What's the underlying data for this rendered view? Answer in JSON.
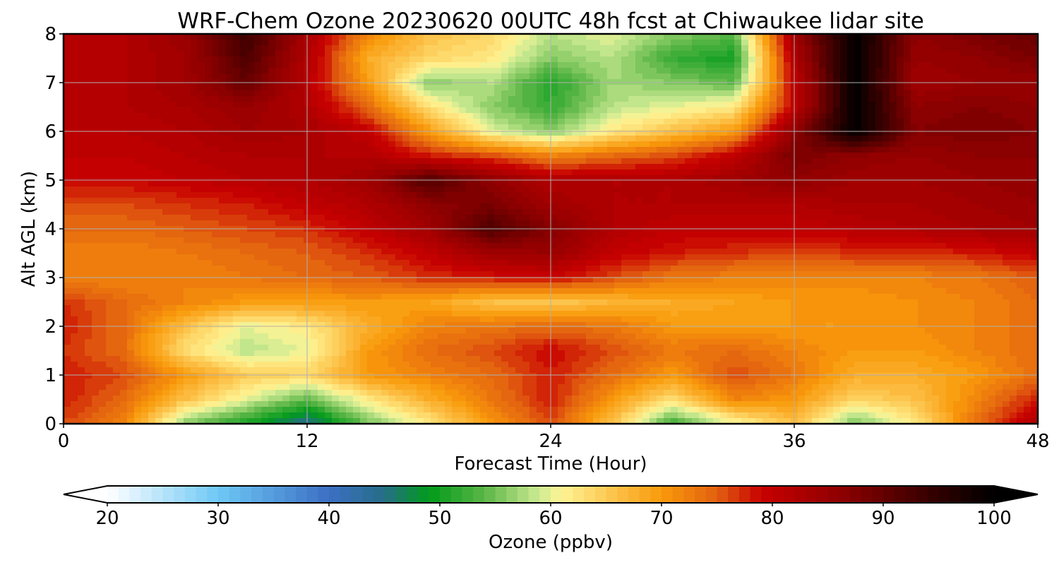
{
  "chart_data": {
    "type": "heatmap",
    "title": "WRF-Chem Ozone  20230620 00UTC 48h fcst at Chiwaukee lidar site",
    "xlabel": "Forecast Time (Hour)",
    "ylabel": "Alt AGL (km)",
    "xlim": [
      0,
      48
    ],
    "ylim": [
      0,
      8
    ],
    "x_ticks": [
      0,
      12,
      24,
      36,
      48
    ],
    "y_ticks": [
      0,
      1,
      2,
      3,
      4,
      5,
      6,
      7,
      8
    ],
    "grid": true,
    "x": [
      0,
      3,
      6,
      9,
      12,
      15,
      18,
      21,
      24,
      27,
      30,
      33,
      36,
      39,
      42,
      45,
      48
    ],
    "y": [
      0,
      0.5,
      1,
      1.5,
      2,
      2.5,
      3,
      3.5,
      4,
      4.5,
      5,
      5.5,
      6,
      6.5,
      7,
      7.5,
      8
    ],
    "z_units": "ppbv",
    "z": [
      [
        76,
        72,
        56,
        50,
        44,
        55,
        62,
        70,
        76,
        66,
        52,
        60,
        66,
        55,
        62,
        74,
        82
      ],
      [
        78,
        74,
        66,
        60,
        54,
        62,
        68,
        73,
        78,
        70,
        63,
        72,
        70,
        64,
        66,
        72,
        78
      ],
      [
        78,
        76,
        70,
        65,
        64,
        70,
        72,
        74,
        78,
        74,
        70,
        76,
        73,
        68,
        68,
        70,
        74
      ],
      [
        77,
        74,
        63,
        58,
        60,
        70,
        74,
        76,
        79,
        76,
        73,
        74,
        72,
        70,
        70,
        72,
        74
      ],
      [
        78,
        74,
        66,
        60,
        62,
        68,
        72,
        73,
        74,
        73,
        70,
        70,
        70,
        70,
        71,
        72,
        74
      ],
      [
        77,
        74,
        72,
        70,
        70,
        70,
        69,
        66,
        65,
        67,
        68,
        69,
        70,
        70,
        71,
        72,
        74
      ],
      [
        72,
        72,
        72,
        73,
        74,
        75,
        77,
        78,
        79,
        76,
        73,
        72,
        72,
        72,
        72,
        73,
        75
      ],
      [
        72,
        72,
        73,
        74,
        75,
        77,
        80,
        84,
        85,
        80,
        78,
        77,
        76,
        77,
        77,
        78,
        80
      ],
      [
        74,
        74,
        75,
        76,
        77,
        80,
        84,
        92,
        87,
        82,
        80,
        80,
        80,
        81,
        82,
        83,
        84
      ],
      [
        76,
        76,
        77,
        78,
        80,
        82,
        86,
        88,
        84,
        82,
        82,
        82,
        82,
        83,
        83,
        84,
        85
      ],
      [
        79,
        79,
        80,
        81,
        82,
        84,
        92,
        86,
        82,
        82,
        82,
        84,
        86,
        84,
        84,
        85,
        86
      ],
      [
        80,
        80,
        81,
        82,
        82,
        82,
        78,
        76,
        72,
        74,
        76,
        80,
        88,
        86,
        85,
        86,
        86
      ],
      [
        81,
        81,
        82,
        84,
        83,
        80,
        70,
        60,
        56,
        62,
        66,
        70,
        86,
        100,
        87,
        88,
        87
      ],
      [
        81,
        82,
        83,
        85,
        82,
        74,
        63,
        56,
        52,
        58,
        60,
        62,
        80,
        100,
        86,
        87,
        86
      ],
      [
        81,
        82,
        84,
        90,
        81,
        70,
        56,
        58,
        51,
        57,
        56,
        54,
        80,
        100,
        84,
        85,
        85
      ],
      [
        81,
        82,
        84,
        92,
        82,
        68,
        64,
        62,
        56,
        58,
        52,
        50,
        82,
        100,
        85,
        86,
        88
      ],
      [
        81,
        82,
        85,
        94,
        83,
        72,
        66,
        64,
        58,
        60,
        56,
        54,
        84,
        100,
        86,
        88,
        90
      ]
    ],
    "colorbar": {
      "label": "Ozone  (ppbv)",
      "min": 20,
      "max": 100,
      "step": 1,
      "extend": "both",
      "ticks": [
        20,
        30,
        40,
        50,
        60,
        70,
        80,
        90,
        100
      ],
      "colors": [
        {
          "v": 20,
          "c": "#ffffff"
        },
        {
          "v": 30,
          "c": "#6ec8f5"
        },
        {
          "v": 40,
          "c": "#3b6fc4"
        },
        {
          "v": 45,
          "c": "#266e86"
        },
        {
          "v": 49,
          "c": "#009a1a"
        },
        {
          "v": 54,
          "c": "#5ab646"
        },
        {
          "v": 59,
          "c": "#cdeb93"
        },
        {
          "v": 61,
          "c": "#fff494"
        },
        {
          "v": 66,
          "c": "#fcc046"
        },
        {
          "v": 70,
          "c": "#f99a0a"
        },
        {
          "v": 75,
          "c": "#e26010"
        },
        {
          "v": 79,
          "c": "#c80000"
        },
        {
          "v": 86,
          "c": "#900000"
        },
        {
          "v": 94,
          "c": "#380000"
        },
        {
          "v": 100,
          "c": "#000000"
        }
      ]
    }
  }
}
